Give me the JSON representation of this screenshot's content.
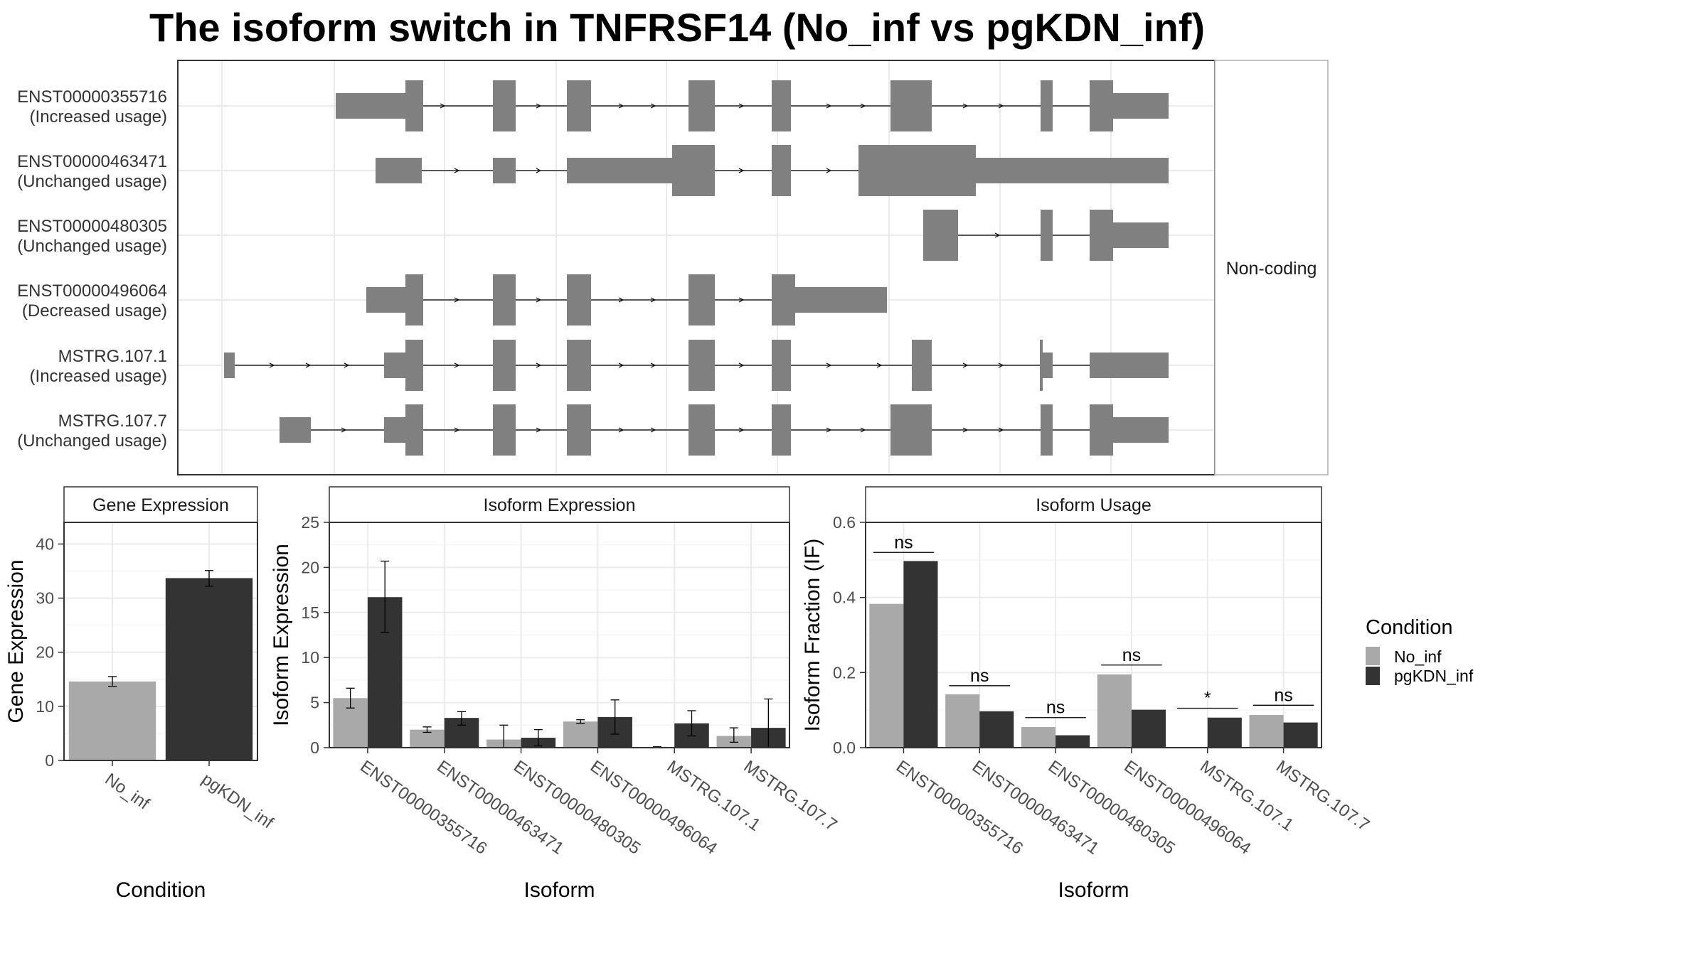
{
  "title": "The isoform switch in TNFRSF14 (No_inf vs pgKDN_inf)",
  "colors": {
    "no_inf": "#a9a9a9",
    "pgkdn_inf": "#333333",
    "exon": "#808080",
    "grid": "#ebebeb",
    "strip": "#ffffff"
  },
  "chart_data": [
    {
      "type": "gene-structure",
      "facet_label": "Non-coding",
      "isoforms": [
        {
          "id": "ENST00000355716",
          "usage": "(Increased usage)"
        },
        {
          "id": "ENST00000463471",
          "usage": "(Unchanged usage)"
        },
        {
          "id": "ENST00000480305",
          "usage": "(Unchanged usage)"
        },
        {
          "id": "ENST00000496064",
          "usage": "(Decreased usage)"
        },
        {
          "id": "MSTRG.107.1",
          "usage": "(Increased usage)"
        },
        {
          "id": "MSTRG.107.7",
          "usage": "(Unchanged usage)"
        }
      ]
    },
    {
      "type": "bar",
      "panel_title": "Gene Expression",
      "xlabel": "Condition",
      "ylabel": "Gene Expression",
      "ylim": [
        0,
        44
      ],
      "yticks": [
        0,
        10,
        20,
        30,
        40
      ],
      "categories": [
        "No_inf",
        "pgKDN_inf"
      ],
      "values": [
        14.6,
        33.7
      ],
      "errors": [
        [
          13.7,
          15.5
        ],
        [
          32.2,
          35.1
        ]
      ]
    },
    {
      "type": "bar",
      "panel_title": "Isoform Expression",
      "xlabel": "Isoform",
      "ylabel": "Isoform Expression",
      "ylim": [
        0,
        25
      ],
      "yticks": [
        0,
        5,
        10,
        15,
        20,
        25
      ],
      "categories": [
        "ENST00000355716",
        "ENST00000463471",
        "ENST00000480305",
        "ENST00000496064",
        "MSTRG.107.1",
        "MSTRG.107.7"
      ],
      "series": [
        {
          "name": "No_inf",
          "values": [
            5.5,
            2.0,
            0.9,
            2.9,
            0.05,
            1.3
          ],
          "errors": [
            [
              4.4,
              6.6
            ],
            [
              1.7,
              2.3
            ],
            [
              0,
              2.5
            ],
            [
              2.7,
              3.1
            ],
            [
              0,
              0.1
            ],
            [
              0.6,
              2.2
            ]
          ]
        },
        {
          "name": "pgKDN_inf",
          "values": [
            16.7,
            3.3,
            1.1,
            3.4,
            2.7,
            2.2
          ],
          "errors": [
            [
              12.8,
              20.7
            ],
            [
              2.5,
              4.0
            ],
            [
              0.2,
              2.0
            ],
            [
              1.5,
              5.3
            ],
            [
              1.3,
              4.1
            ],
            [
              0,
              5.4
            ]
          ]
        }
      ]
    },
    {
      "type": "bar",
      "panel_title": "Isoform Usage",
      "xlabel": "Isoform",
      "ylabel": "Isoform Fraction (IF)",
      "ylim": [
        0,
        0.6
      ],
      "yticks": [
        "0.0",
        "0.2",
        "0.4",
        "0.6"
      ],
      "categories": [
        "ENST00000355716",
        "ENST00000463471",
        "ENST00000480305",
        "ENST00000496064",
        "MSTRG.107.1",
        "MSTRG.107.7"
      ],
      "series": [
        {
          "name": "No_inf",
          "values": [
            0.383,
            0.142,
            0.055,
            0.195,
            0.0,
            0.087
          ]
        },
        {
          "name": "pgKDN_inf",
          "values": [
            0.497,
            0.097,
            0.033,
            0.101,
            0.08,
            0.067
          ]
        }
      ],
      "significance": [
        "ns",
        "ns",
        "ns",
        "ns",
        "*",
        "ns"
      ],
      "significance_levels": [
        0.52,
        0.165,
        0.08,
        0.22,
        0.105,
        0.113
      ]
    }
  ],
  "legend": {
    "title": "Condition",
    "entries": [
      "No_inf",
      "pgKDN_inf"
    ]
  }
}
